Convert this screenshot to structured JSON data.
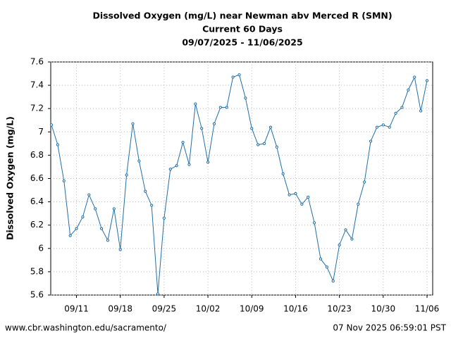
{
  "chart_data": {
    "type": "line",
    "title": "Dissolved Oxygen (mg/L) near Newman abv Merced R (SMN)",
    "subtitle": "Current 60 Days",
    "date_range": "09/07/2025 - 11/06/2025",
    "y_label": "Dissolved Oxygen (mg/L)",
    "source": "www.cbr.washington.edu/sacramento/",
    "timestamp": "07 Nov 2025 06:59:01 PST",
    "grid": true,
    "x": [
      "09/07",
      "09/08",
      "09/09",
      "09/10",
      "09/11",
      "09/12",
      "09/13",
      "09/14",
      "09/15",
      "09/16",
      "09/17",
      "09/18",
      "09/19",
      "09/20",
      "09/21",
      "09/22",
      "09/23",
      "09/24",
      "09/25",
      "09/26",
      "09/27",
      "09/28",
      "09/29",
      "09/30",
      "10/01",
      "10/02",
      "10/03",
      "10/04",
      "10/05",
      "10/06",
      "10/07",
      "10/08",
      "10/09",
      "10/10",
      "10/11",
      "10/12",
      "10/13",
      "10/14",
      "10/15",
      "10/16",
      "10/17",
      "10/18",
      "10/19",
      "10/20",
      "10/21",
      "10/22",
      "10/23",
      "10/24",
      "10/25",
      "10/26",
      "10/27",
      "10/28",
      "10/29",
      "10/30",
      "10/31",
      "11/01",
      "11/02",
      "11/03",
      "11/04",
      "11/05",
      "11/06"
    ],
    "xticks": [
      "09/11",
      "09/18",
      "09/25",
      "10/02",
      "10/09",
      "10/16",
      "10/23",
      "10/30",
      "11/06"
    ],
    "series": [
      {
        "color": "#1f6fa8",
        "values": [
          7.06,
          6.89,
          6.58,
          6.11,
          6.17,
          6.27,
          6.46,
          6.34,
          6.17,
          6.07,
          6.34,
          5.99,
          6.63,
          7.07,
          6.75,
          6.49,
          6.37,
          5.61,
          6.26,
          6.68,
          6.71,
          6.91,
          6.72,
          7.24,
          7.03,
          6.74,
          7.07,
          7.21,
          7.21,
          7.47,
          7.49,
          7.29,
          7.03,
          6.89,
          6.9,
          7.04,
          6.87,
          6.64,
          6.46,
          6.47,
          6.38,
          6.44,
          6.22,
          5.91,
          5.84,
          5.72,
          6.03,
          6.16,
          6.08,
          6.38,
          6.57,
          6.92,
          7.04,
          7.06,
          7.04,
          7.16,
          7.21,
          7.36,
          7.47,
          7.18,
          7.44
        ]
      }
    ],
    "ylim": [
      5.6,
      7.6
    ],
    "yticks": [
      5.6,
      5.8,
      6,
      6.2,
      6.4,
      6.6,
      6.8,
      7,
      7.2,
      7.4,
      7.6
    ]
  }
}
